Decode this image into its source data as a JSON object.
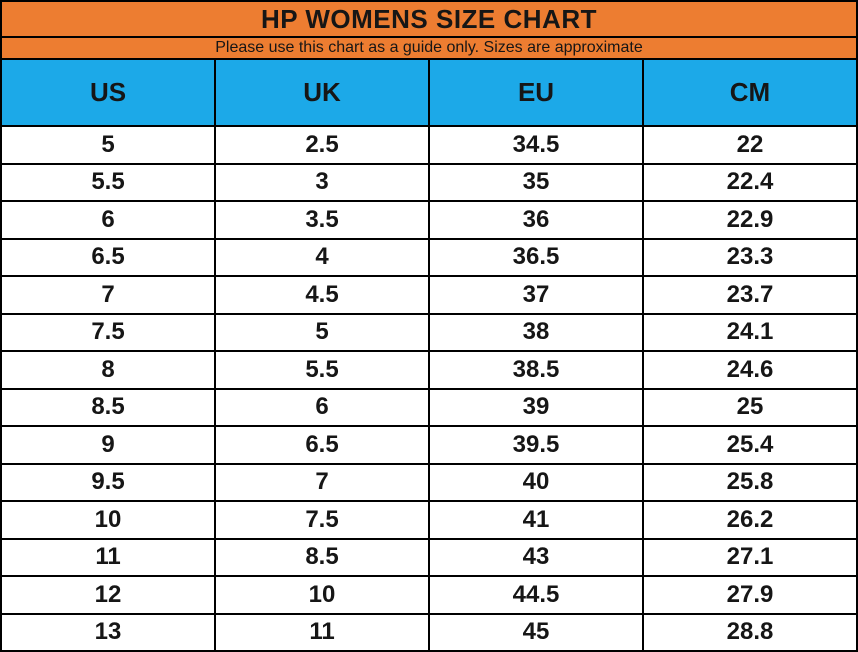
{
  "chart_data": {
    "type": "table",
    "title": "HP WOMENS SIZE CHART",
    "subtitle": "Please use this chart as a guide only. Sizes are approximate",
    "columns": [
      "US",
      "UK",
      "EU",
      "CM"
    ],
    "rows": [
      [
        "5",
        "2.5",
        "34.5",
        "22"
      ],
      [
        "5.5",
        "3",
        "35",
        "22.4"
      ],
      [
        "6",
        "3.5",
        "36",
        "22.9"
      ],
      [
        "6.5",
        "4",
        "36.5",
        "23.3"
      ],
      [
        "7",
        "4.5",
        "37",
        "23.7"
      ],
      [
        "7.5",
        "5",
        "38",
        "24.1"
      ],
      [
        "8",
        "5.5",
        "38.5",
        "24.6"
      ],
      [
        "8.5",
        "6",
        "39",
        "25"
      ],
      [
        "9",
        "6.5",
        "39.5",
        "25.4"
      ],
      [
        "9.5",
        "7",
        "40",
        "25.8"
      ],
      [
        "10",
        "7.5",
        "41",
        "26.2"
      ],
      [
        "11",
        "8.5",
        "43",
        "27.1"
      ],
      [
        "12",
        "10",
        "44.5",
        "27.9"
      ],
      [
        "13",
        "11",
        "45",
        "28.8"
      ]
    ],
    "layout": {
      "grid": "on",
      "legend": "none"
    },
    "colors": {
      "title_band": "#ED7D31",
      "subtitle_band": "#ED7D31",
      "column_header": "#1CA9E8",
      "row_background": "#FFFFFF",
      "border": "#000000",
      "text": "#161616"
    }
  }
}
